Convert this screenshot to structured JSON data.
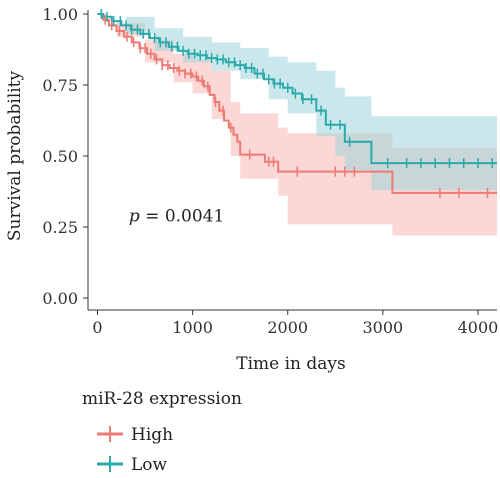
{
  "chart_data": {
    "type": "line",
    "subtype": "kaplan-meier",
    "title": "",
    "xlabel": "Time in days",
    "ylabel": "Survival probability",
    "xlim": [
      -100,
      4200
    ],
    "ylim": [
      0,
      1.0
    ],
    "xticks": [
      0,
      1000,
      2000,
      3000,
      4000
    ],
    "xtick_labels": [
      "0",
      "1000",
      "2000",
      "3000",
      "4000"
    ],
    "yticks": [
      0,
      0.25,
      0.5,
      0.75,
      1.0
    ],
    "ytick_labels": [
      "0.00",
      "0.25",
      "0.50",
      "0.75",
      "1.00"
    ],
    "grid": false,
    "annotation": {
      "prefix": "p",
      "value": " = 0.0041",
      "x": 330,
      "y": 0.27
    },
    "legend": {
      "title": "miR-28 expression",
      "placement": "bottom-left"
    },
    "series": [
      {
        "name": "High",
        "color": "#ee7a73",
        "band_color": "#f7b8b4",
        "steps": [
          [
            0,
            1.0
          ],
          [
            60,
            0.98
          ],
          [
            120,
            0.96
          ],
          [
            200,
            0.94
          ],
          [
            280,
            0.92
          ],
          [
            360,
            0.9
          ],
          [
            440,
            0.88
          ],
          [
            520,
            0.86
          ],
          [
            600,
            0.84
          ],
          [
            680,
            0.82
          ],
          [
            760,
            0.81
          ],
          [
            840,
            0.8
          ],
          [
            920,
            0.79
          ],
          [
            1000,
            0.78
          ],
          [
            1060,
            0.765
          ],
          [
            1120,
            0.745
          ],
          [
            1180,
            0.715
          ],
          [
            1230,
            0.69
          ],
          [
            1280,
            0.66
          ],
          [
            1330,
            0.625
          ],
          [
            1380,
            0.6
          ],
          [
            1430,
            0.575
          ],
          [
            1470,
            0.55
          ],
          [
            1500,
            0.505
          ],
          [
            1760,
            0.48
          ],
          [
            1900,
            0.445
          ],
          [
            3100,
            0.37
          ],
          [
            4200,
            0.37
          ]
        ],
        "lower": [
          [
            0,
            1.0
          ],
          [
            200,
            0.92
          ],
          [
            500,
            0.83
          ],
          [
            800,
            0.76
          ],
          [
            1000,
            0.72
          ],
          [
            1200,
            0.63
          ],
          [
            1400,
            0.5
          ],
          [
            1500,
            0.42
          ],
          [
            1900,
            0.36
          ],
          [
            2000,
            0.26
          ],
          [
            3100,
            0.22
          ],
          [
            4200,
            0.22
          ]
        ],
        "upper": [
          [
            0,
            1.0
          ],
          [
            200,
            0.97
          ],
          [
            500,
            0.91
          ],
          [
            800,
            0.86
          ],
          [
            1000,
            0.84
          ],
          [
            1200,
            0.8
          ],
          [
            1400,
            0.69
          ],
          [
            1500,
            0.65
          ],
          [
            1900,
            0.6
          ],
          [
            2000,
            0.58
          ],
          [
            3100,
            0.53
          ],
          [
            4200,
            0.53
          ]
        ],
        "censors": [
          80,
          150,
          230,
          310,
          380,
          450,
          500,
          560,
          620,
          680,
          740,
          800,
          860,
          920,
          980,
          1040,
          1100,
          1160,
          1240,
          1320,
          1400,
          1600,
          1800,
          1850,
          2100,
          2500,
          2600,
          2700,
          3600,
          3800,
          4100
        ]
      },
      {
        "name": "Low",
        "color": "#2aa9aa",
        "band_color": "#9fd6da",
        "steps": [
          [
            0,
            1.0
          ],
          [
            60,
            0.99
          ],
          [
            150,
            0.975
          ],
          [
            250,
            0.96
          ],
          [
            350,
            0.945
          ],
          [
            450,
            0.93
          ],
          [
            550,
            0.915
          ],
          [
            650,
            0.9
          ],
          [
            750,
            0.885
          ],
          [
            850,
            0.87
          ],
          [
            950,
            0.86
          ],
          [
            1050,
            0.855
          ],
          [
            1150,
            0.845
          ],
          [
            1250,
            0.84
          ],
          [
            1350,
            0.83
          ],
          [
            1450,
            0.82
          ],
          [
            1550,
            0.81
          ],
          [
            1650,
            0.79
          ],
          [
            1750,
            0.77
          ],
          [
            1850,
            0.755
          ],
          [
            1950,
            0.74
          ],
          [
            2050,
            0.72
          ],
          [
            2150,
            0.7
          ],
          [
            2300,
            0.66
          ],
          [
            2400,
            0.61
          ],
          [
            2600,
            0.55
          ],
          [
            2880,
            0.475
          ],
          [
            4200,
            0.475
          ]
        ],
        "lower": [
          [
            0,
            1.0
          ],
          [
            300,
            0.93
          ],
          [
            600,
            0.87
          ],
          [
            900,
            0.83
          ],
          [
            1200,
            0.8
          ],
          [
            1500,
            0.77
          ],
          [
            1800,
            0.7
          ],
          [
            2000,
            0.65
          ],
          [
            2300,
            0.57
          ],
          [
            2500,
            0.5
          ],
          [
            2600,
            0.45
          ],
          [
            2880,
            0.38
          ],
          [
            4200,
            0.38
          ]
        ],
        "upper": [
          [
            0,
            1.0
          ],
          [
            300,
            0.99
          ],
          [
            600,
            0.95
          ],
          [
            900,
            0.92
          ],
          [
            1200,
            0.9
          ],
          [
            1500,
            0.88
          ],
          [
            1800,
            0.85
          ],
          [
            2000,
            0.83
          ],
          [
            2300,
            0.8
          ],
          [
            2500,
            0.74
          ],
          [
            2600,
            0.71
          ],
          [
            2880,
            0.64
          ],
          [
            4200,
            0.64
          ]
        ],
        "censors": [
          40,
          100,
          170,
          240,
          300,
          360,
          420,
          480,
          540,
          600,
          660,
          720,
          780,
          840,
          900,
          960,
          1020,
          1080,
          1140,
          1200,
          1260,
          1320,
          1380,
          1440,
          1500,
          1560,
          1620,
          1680,
          1740,
          1800,
          1860,
          1920,
          2000,
          2080,
          2160,
          2250,
          2350,
          2450,
          2550,
          2650,
          3050,
          3250,
          3400,
          3550,
          3700,
          3850,
          4000,
          4150
        ]
      }
    ]
  }
}
